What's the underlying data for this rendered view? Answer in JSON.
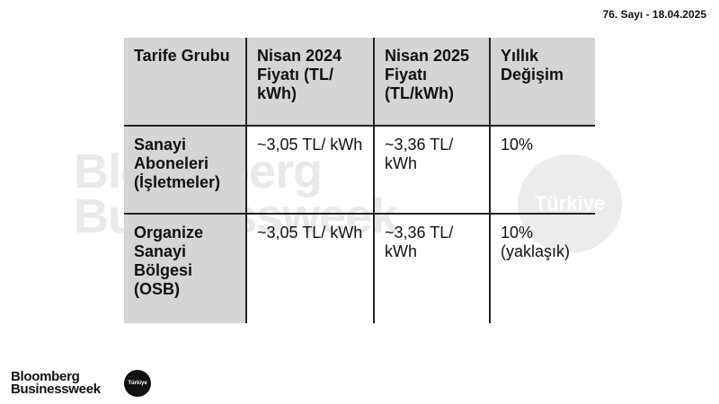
{
  "issue_line": "76. Sayı - 18.04.2025",
  "watermark": {
    "line1": "Bloomberg",
    "line2": "Businessweek",
    "badge": "Türkiye"
  },
  "table": {
    "headers": [
      "Tarife Grubu",
      "Nisan 2024 Fiyatı (TL/ kWh)",
      "Nisan 2025 Fiyatı (TL/kWh)",
      "Yıllık Değişim"
    ],
    "rows": [
      [
        "Sanayi Aboneleri (İşletmeler)",
        "~3,05 TL/ kWh",
        "~3,36 TL/ kWh",
        "10%"
      ],
      [
        "Organize Sanayi Bölgesi (OSB)",
        "~3,05 TL/ kWh",
        "~3,36 TL/ kWh",
        "10% (yaklaşık)"
      ]
    ]
  },
  "footer_logo": {
    "line1": "Bloomberg",
    "line2": "Businessweek",
    "badge": "Türkiye"
  }
}
